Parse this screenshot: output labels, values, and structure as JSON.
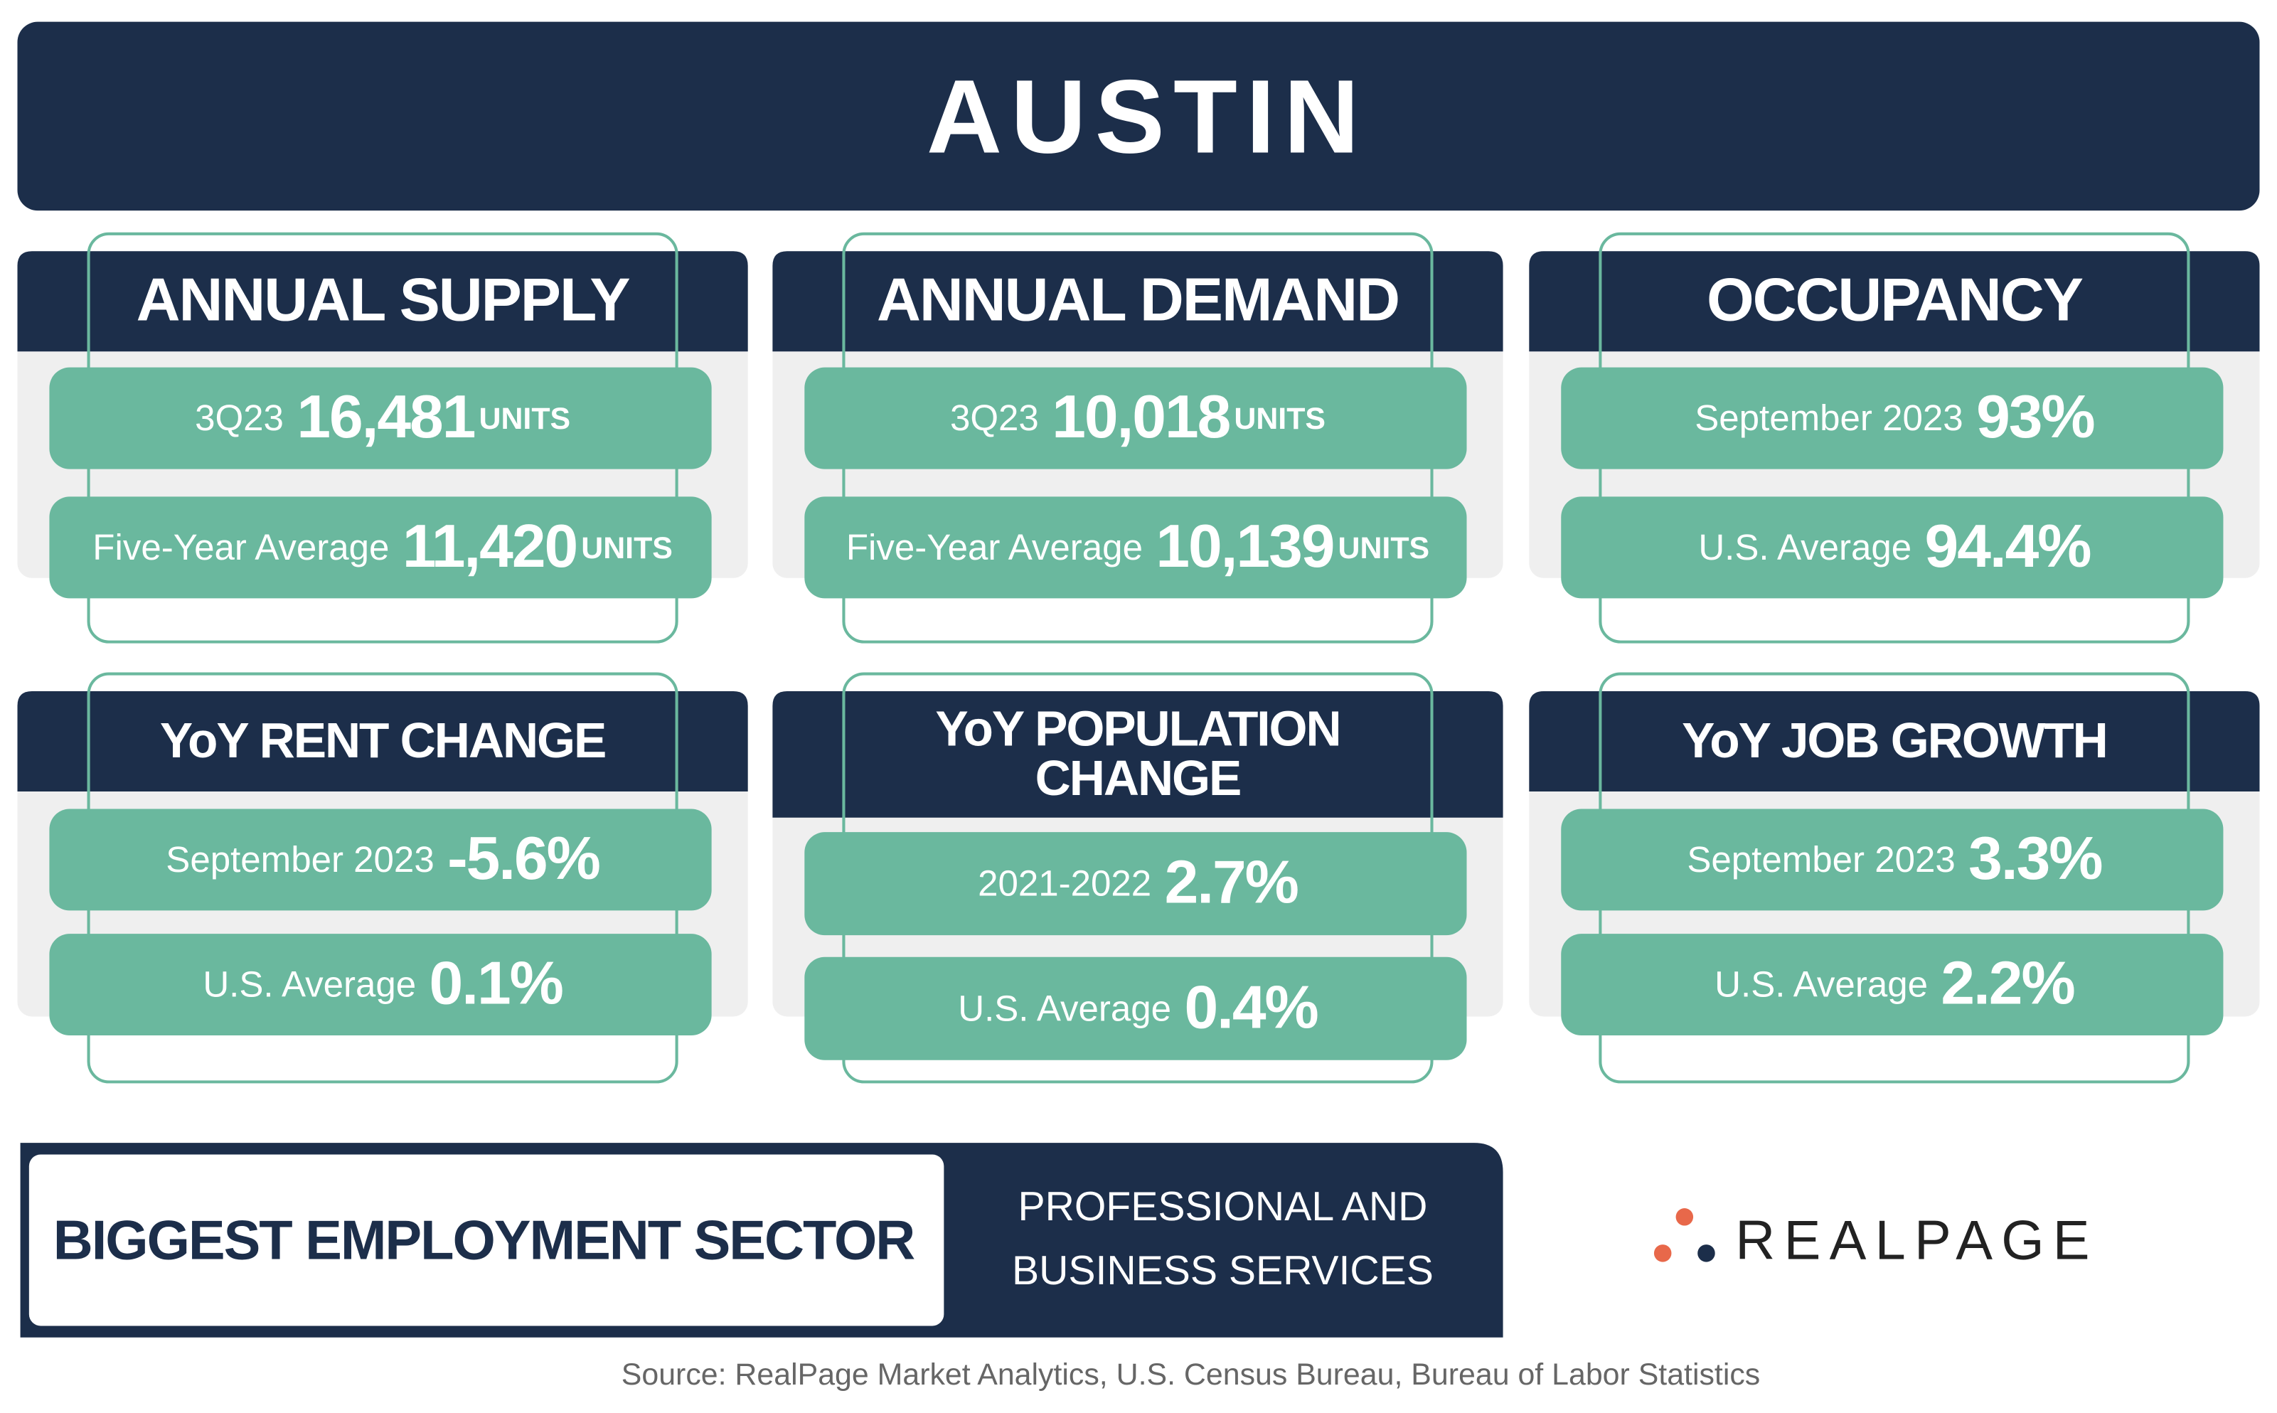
{
  "header": {
    "title": "AUSTIN"
  },
  "cards": [
    {
      "title_lines": [
        "ANNUAL SUPPLY"
      ],
      "rows": [
        {
          "label": "3Q23",
          "value": "16,481",
          "unit": "UNITS"
        },
        {
          "label": "Five-Year Average",
          "value": "11,420",
          "unit": "UNITS"
        }
      ]
    },
    {
      "title_lines": [
        "ANNUAL DEMAND"
      ],
      "rows": [
        {
          "label": "3Q23",
          "value": "10,018",
          "unit": "UNITS"
        },
        {
          "label": "Five-Year Average",
          "value": "10,139",
          "unit": "UNITS"
        }
      ]
    },
    {
      "title_lines": [
        "OCCUPANCY"
      ],
      "rows": [
        {
          "label": "September 2023",
          "value": "93%"
        },
        {
          "label": "U.S. Average",
          "value": "94.4%"
        }
      ]
    },
    {
      "title_lines": [
        "YoY RENT CHANGE"
      ],
      "rows": [
        {
          "label": "September 2023",
          "value": "-5.6%"
        },
        {
          "label": "U.S. Average",
          "value": "0.1%"
        }
      ]
    },
    {
      "title_lines": [
        "YoY POPULATION",
        "CHANGE"
      ],
      "rows": [
        {
          "label": "2021-2022",
          "value": "2.7%"
        },
        {
          "label": "U.S. Average",
          "value": "0.4%"
        }
      ]
    },
    {
      "title_lines": [
        "YoY JOB GROWTH"
      ],
      "rows": [
        {
          "label": "September 2023",
          "value": "3.3%"
        },
        {
          "label": "U.S. Average",
          "value": "2.2%"
        }
      ]
    }
  ],
  "employment": {
    "label": "BIGGEST EMPLOYMENT SECTOR",
    "value_lines": [
      "PROFESSIONAL AND",
      "BUSINESS SERVICES"
    ]
  },
  "logo": {
    "text": "REALPAGE"
  },
  "source": "Source: RealPage Market Analytics, U.S. Census Bureau, Bureau of Labor Statistics"
}
